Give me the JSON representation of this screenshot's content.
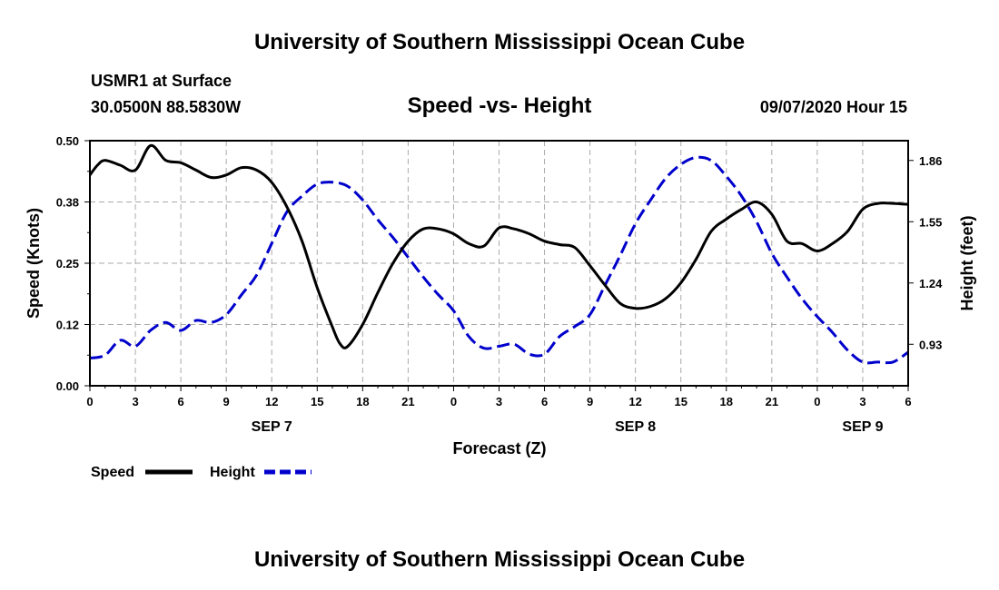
{
  "header": {
    "title": "University of Southern Mississippi Ocean Cube",
    "station": "USMR1 at Surface",
    "coords": "30.0500N 88.5830W",
    "datetime": "09/07/2020 Hour 15"
  },
  "footer": {
    "title": "University of Southern Mississippi Ocean Cube"
  },
  "colors": {
    "speed": "#000000",
    "height": "#0000cc",
    "grid": "#aaaaaa"
  },
  "chart_data": {
    "type": "line",
    "title": "Speed -vs- Height",
    "xlabel": "Forecast (Z)",
    "ylabel": "Speed (Knots)",
    "y2label": "Height (feet)",
    "xlim": [
      0,
      54
    ],
    "ylim": [
      0,
      0.5
    ],
    "y2lim": [
      0.72,
      1.96
    ],
    "x_ticks": [
      0,
      3,
      6,
      9,
      12,
      15,
      18,
      21,
      24,
      27,
      30,
      33,
      36,
      39,
      42,
      45,
      48,
      51,
      54
    ],
    "x_tick_labels": [
      "0",
      "3",
      "6",
      "9",
      "12",
      "15",
      "18",
      "21",
      "0",
      "3",
      "6",
      "9",
      "12",
      "15",
      "18",
      "21",
      "0",
      "3",
      "6"
    ],
    "y_ticks": [
      0,
      0.125,
      0.25,
      0.375,
      0.5
    ],
    "y_tick_labels": [
      "0.00",
      "0.12",
      "0.25",
      "0.38",
      "0.50"
    ],
    "y2_ticks": [
      0.93,
      1.24,
      1.55,
      1.86
    ],
    "y2_tick_labels": [
      "0.93",
      "1.24",
      "1.55",
      "1.86"
    ],
    "date_labels": [
      {
        "x": 12,
        "label": "SEP 7"
      },
      {
        "x": 36,
        "label": "SEP 8"
      },
      {
        "x": 51,
        "label": "SEP 9"
      }
    ],
    "grid": true,
    "legend_position": "bottom-left",
    "series": [
      {
        "name": "Speed",
        "axis": "left",
        "style": "solid",
        "x": [
          0,
          0.5,
          1,
          2,
          3,
          4,
          5,
          6,
          7,
          8,
          9,
          10,
          11,
          12,
          13,
          14,
          15,
          16,
          16.5,
          17,
          18,
          19,
          20,
          21,
          22,
          23,
          24,
          25,
          26,
          27,
          28,
          29,
          30,
          31,
          32,
          33,
          34,
          35,
          36,
          37,
          38,
          39,
          40,
          41,
          42,
          43,
          44,
          45,
          46,
          47,
          48,
          49,
          50,
          51,
          52,
          53,
          54
        ],
        "values": [
          0.43,
          0.45,
          0.46,
          0.45,
          0.44,
          0.49,
          0.46,
          0.455,
          0.44,
          0.425,
          0.43,
          0.445,
          0.44,
          0.415,
          0.365,
          0.295,
          0.2,
          0.12,
          0.086,
          0.08,
          0.125,
          0.19,
          0.25,
          0.295,
          0.32,
          0.32,
          0.31,
          0.29,
          0.285,
          0.322,
          0.32,
          0.31,
          0.295,
          0.288,
          0.282,
          0.245,
          0.205,
          0.168,
          0.158,
          0.162,
          0.178,
          0.21,
          0.258,
          0.315,
          0.34,
          0.36,
          0.375,
          0.35,
          0.295,
          0.29,
          0.275,
          0.29,
          0.315,
          0.36,
          0.372,
          0.372,
          0.37
        ]
      },
      {
        "name": "Height",
        "axis": "right",
        "style": "dashed",
        "x": [
          0,
          1,
          2,
          3,
          4,
          5,
          6,
          7,
          8,
          9,
          10,
          11,
          12,
          13,
          14,
          15,
          16,
          17,
          18,
          19,
          20,
          21,
          22,
          23,
          24,
          25,
          26,
          27,
          28,
          29,
          30,
          31,
          32,
          33,
          34,
          35,
          36,
          37,
          38,
          39,
          40,
          41,
          42,
          43,
          44,
          45,
          46,
          47,
          48,
          49,
          50,
          51,
          52,
          53,
          54
        ],
        "values": [
          0.86,
          0.875,
          0.95,
          0.92,
          1.0,
          1.04,
          1.0,
          1.05,
          1.04,
          1.08,
          1.18,
          1.28,
          1.44,
          1.6,
          1.68,
          1.74,
          1.75,
          1.73,
          1.66,
          1.56,
          1.47,
          1.37,
          1.27,
          1.18,
          1.1,
          0.97,
          0.91,
          0.92,
          0.93,
          0.88,
          0.88,
          0.97,
          1.02,
          1.08,
          1.23,
          1.38,
          1.54,
          1.66,
          1.77,
          1.84,
          1.875,
          1.86,
          1.78,
          1.68,
          1.55,
          1.39,
          1.27,
          1.16,
          1.07,
          0.99,
          0.9,
          0.84,
          0.84,
          0.84,
          0.89
        ]
      }
    ]
  }
}
